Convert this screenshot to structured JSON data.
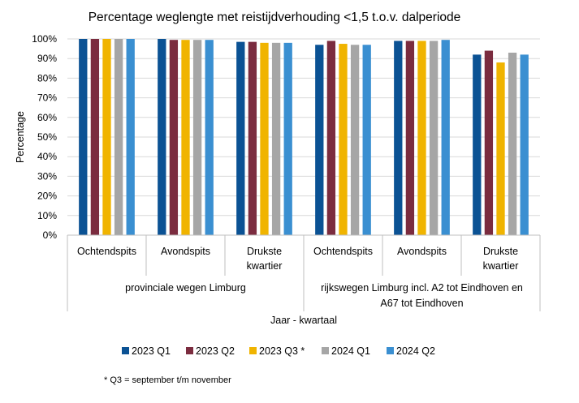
{
  "chart_data": {
    "type": "bar",
    "title": "Percentage weglengte met reistijdverhouding <1,5 t.o.v. dalperiode",
    "ylabel": "Percentage",
    "xlabel": "Jaar - kwartaal",
    "ylim": [
      0,
      100
    ],
    "yticks": [
      "0%",
      "10%",
      "20%",
      "30%",
      "40%",
      "50%",
      "60%",
      "70%",
      "80%",
      "90%",
      "100%"
    ],
    "grid": true,
    "legend_position": "bottom",
    "groups": [
      {
        "label": "provinciale wegen Limburg",
        "categories": [
          "Ochtendspits",
          "Avondspits",
          "Drukste kwartier"
        ]
      },
      {
        "label": "rijkswegen Limburg incl. A2 tot Eindhoven en A67 tot Eindhoven",
        "categories": [
          "Ochtendspits",
          "Avondspits",
          "Drukste kwartier"
        ]
      }
    ],
    "category_lines": [
      [
        "Ochtendspits"
      ],
      [
        "Avondspits"
      ],
      [
        "Drukste",
        "kwartier"
      ],
      [
        "Ochtendspits"
      ],
      [
        "Avondspits"
      ],
      [
        "Drukste",
        "kwartier"
      ]
    ],
    "group_lines": [
      [
        "provinciale wegen Limburg"
      ],
      [
        "rijkswegen Limburg incl. A2 tot Eindhoven en",
        "A67 tot Eindhoven"
      ]
    ],
    "series": [
      {
        "name": "2023 Q1",
        "color": "#0b5294",
        "values": [
          100,
          100,
          98.5,
          97,
          99,
          92
        ]
      },
      {
        "name": "2023 Q2",
        "color": "#7b2c3f",
        "values": [
          100,
          99.5,
          98.5,
          99,
          99,
          94
        ]
      },
      {
        "name": "2023 Q3 *",
        "color": "#f0b400",
        "values": [
          100,
          99.5,
          98,
          97.5,
          99,
          88
        ]
      },
      {
        "name": "2024 Q1",
        "color": "#a6a6a6",
        "values": [
          100,
          99.5,
          98,
          97,
          99,
          93
        ]
      },
      {
        "name": "2024 Q2",
        "color": "#3a8fd1",
        "values": [
          100,
          99.5,
          98,
          97,
          99.5,
          92
        ]
      }
    ],
    "footnote": "* Q3 = september t/m november"
  }
}
